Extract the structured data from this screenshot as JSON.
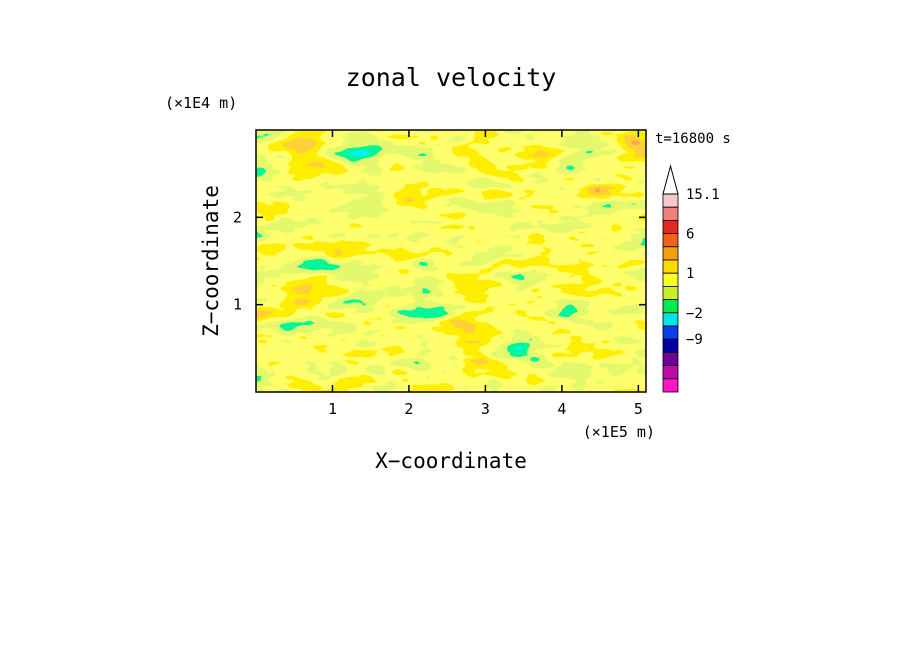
{
  "chart_data": {
    "type": "heatmap",
    "title": "zonal velocity",
    "time_label": "t=16800 s",
    "xlabel": "X−coordinate",
    "ylabel": "Z−coordinate",
    "x_unit_label": "(×1E5 m)",
    "y_unit_label": "(×1E4 m)",
    "xlim": [
      0,
      5.1
    ],
    "ylim": [
      0,
      3
    ],
    "x_ticks": [
      "1",
      "2",
      "3",
      "4",
      "5"
    ],
    "y_ticks": [
      "1",
      "2"
    ],
    "colorbar": {
      "labels": [
        "15.1",
        "6",
        "1",
        "−2",
        "−9"
      ],
      "levels_top_to_bottom": [
        15.1,
        12,
        9,
        6,
        3,
        2,
        1,
        0,
        -1,
        -2,
        -5,
        -9,
        -12,
        -15.1
      ],
      "colors_top_to_bottom": [
        "#f6c8c8",
        "#f08080",
        "#e8281e",
        "#f06414",
        "#f5a00a",
        "#ffdc00",
        "#ffff28",
        "#c8f028",
        "#00ec50",
        "#00e6e6",
        "#0a3cf0",
        "#0000a0",
        "#700098",
        "#c00aa8",
        "#ff14c8"
      ],
      "extend_top": true
    },
    "grid": false
  }
}
